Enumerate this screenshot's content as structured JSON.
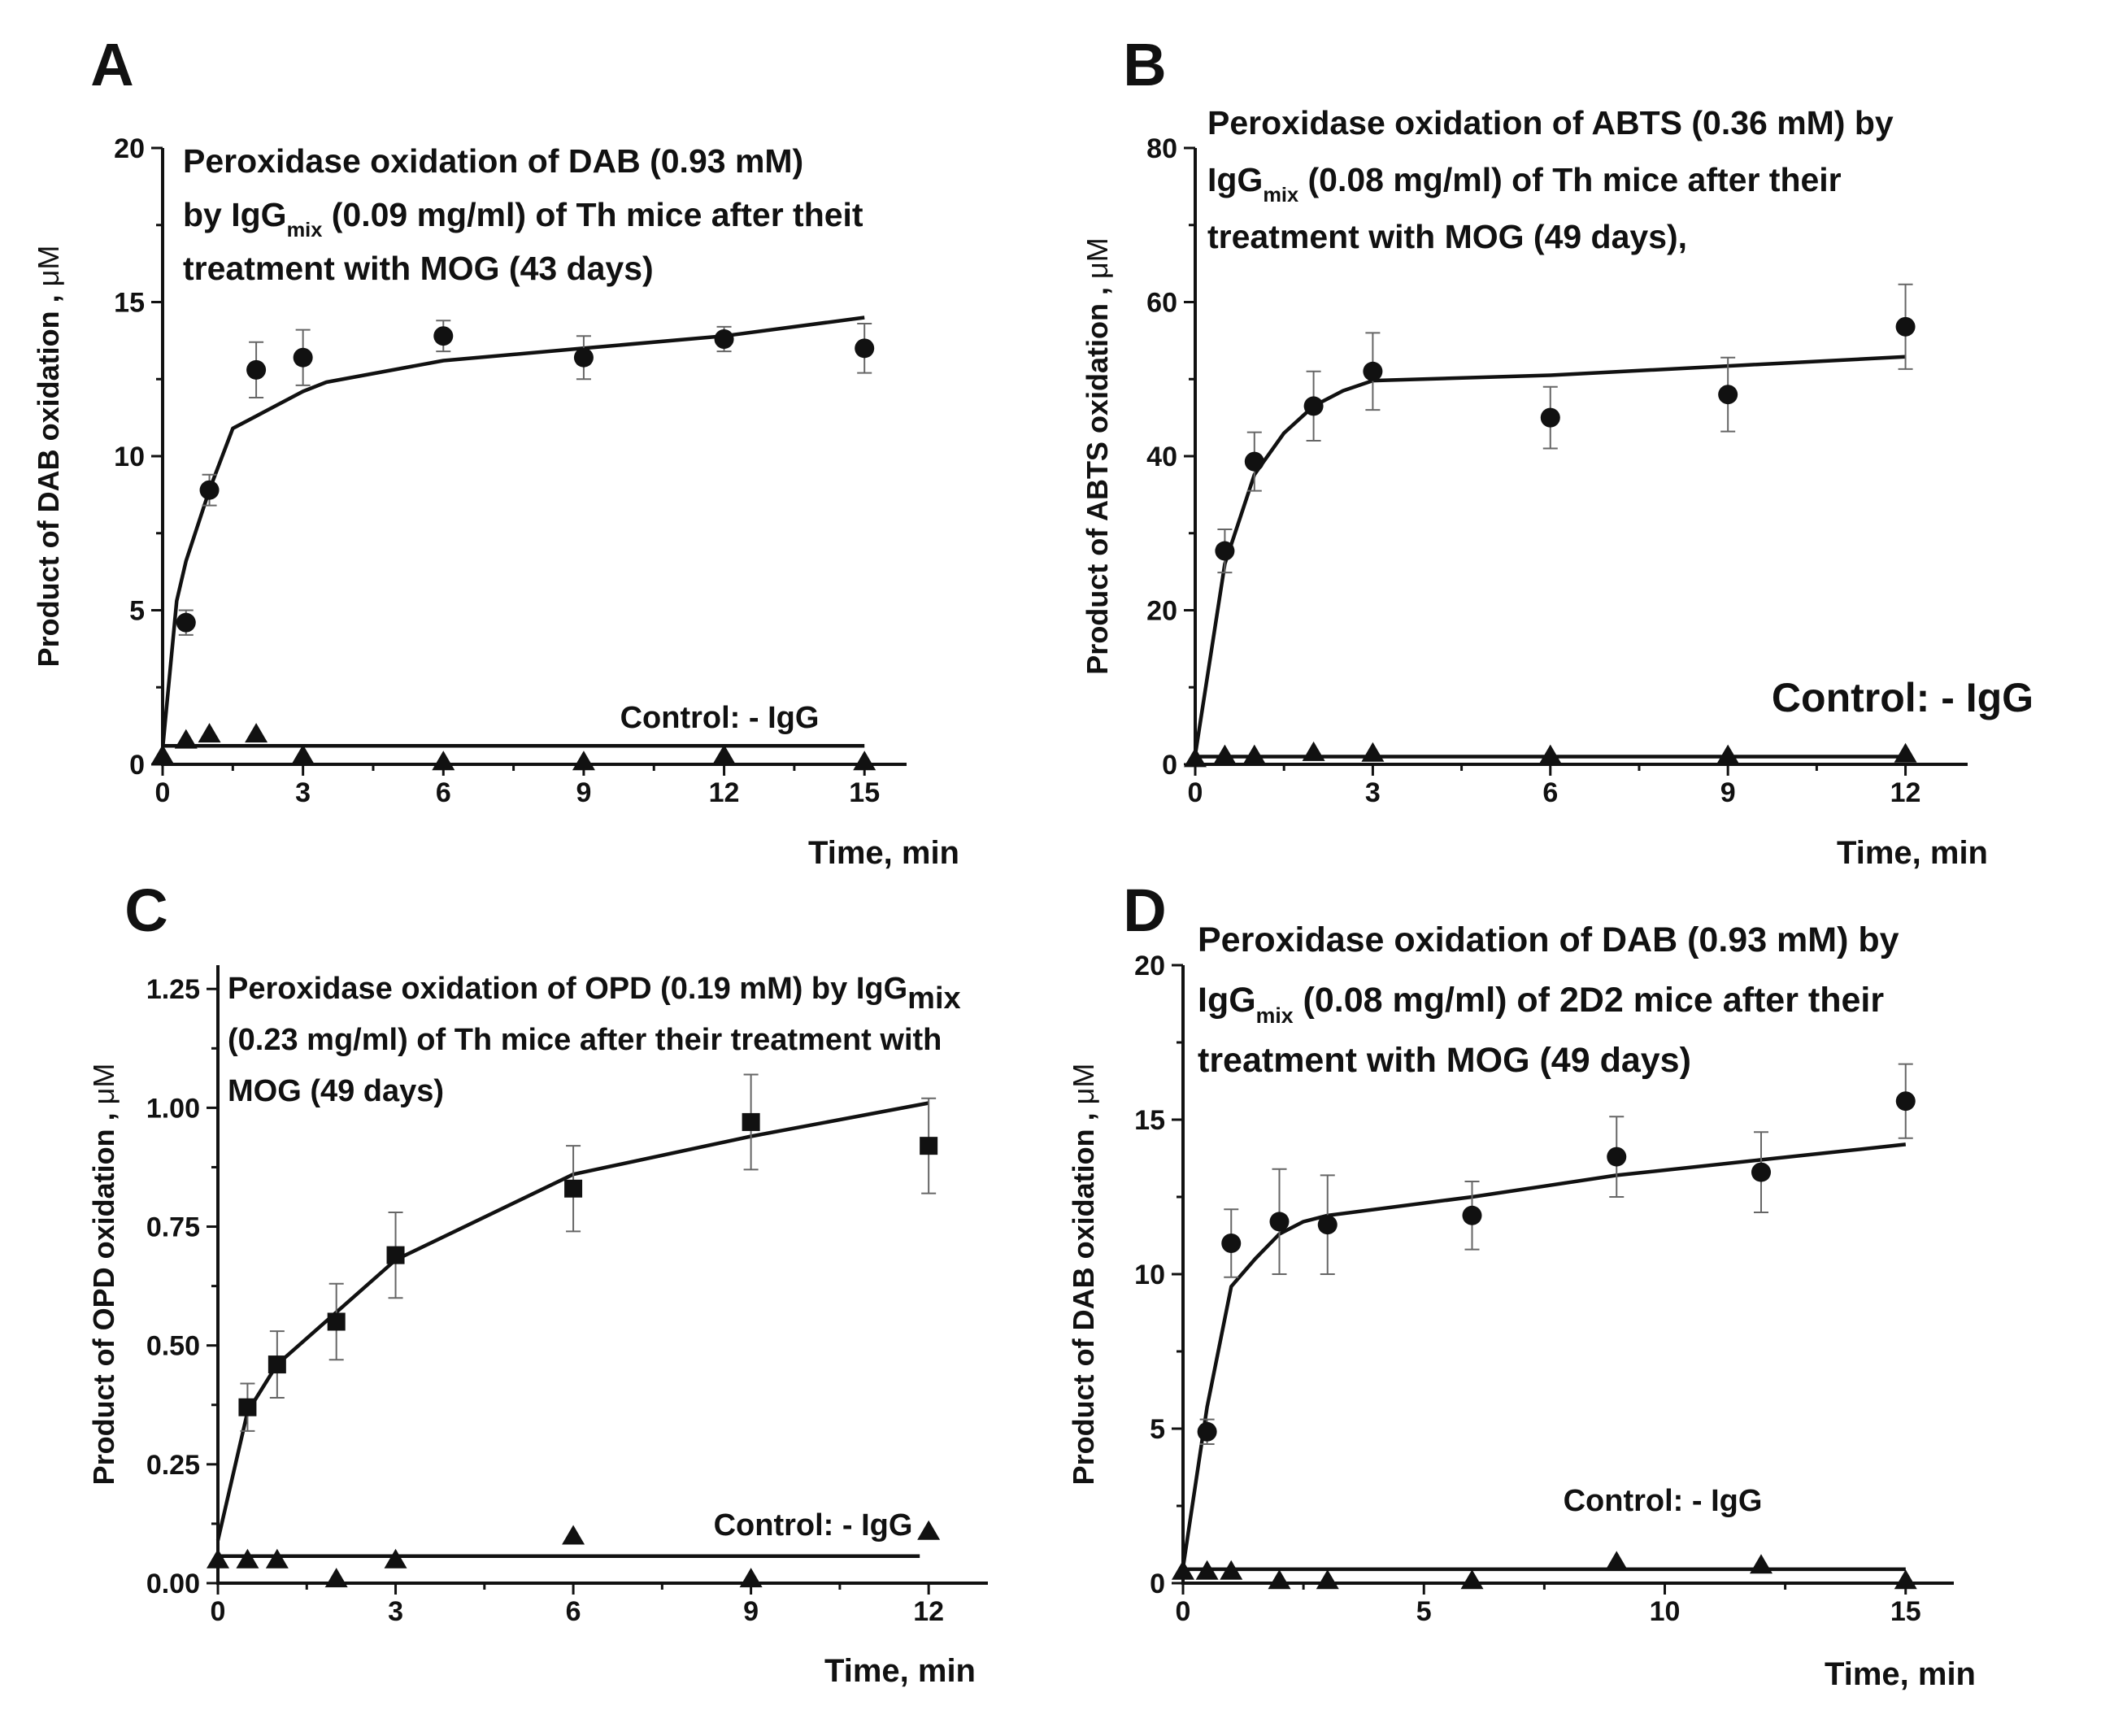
{
  "chart_data": [
    {
      "type": "scatter",
      "panel": "A",
      "title_lines": [
        [
          "Peroxidase oxidation of  DAB (0.93 mM)"
        ],
        [
          "by IgG",
          {
            "sub": "mix"
          },
          " (0.09 mg/ml) of Th mice after theit"
        ],
        [
          " treatment with MOG  (43 days)"
        ]
      ],
      "xlabel": "Time, min",
      "ylabel": "Product of DAB oxidation , ",
      "ylabel_unit": "μM",
      "xlim": [
        0,
        15.9
      ],
      "ylim": [
        0,
        20
      ],
      "xticks": [
        0,
        3,
        6,
        9,
        12,
        15
      ],
      "yticks": [
        0,
        5,
        10,
        15,
        20
      ],
      "ytick_labels": [
        "0",
        "5",
        "10",
        "15",
        "20"
      ],
      "control_label": "Control: - IgG",
      "series": [
        {
          "name": "IgG_mix",
          "marker": "circle",
          "x": [
            0.5,
            1,
            2,
            3,
            6,
            9,
            12,
            15
          ],
          "y": [
            4.6,
            8.9,
            12.8,
            13.2,
            13.9,
            13.2,
            13.8,
            13.5
          ],
          "err": [
            0.4,
            0.5,
            0.9,
            0.9,
            0.5,
            0.7,
            0.4,
            0.8
          ]
        },
        {
          "name": "Control: - IgG",
          "marker": "triangle",
          "x": [
            0,
            0.5,
            1,
            2,
            3,
            6,
            9,
            12,
            15
          ],
          "y": [
            0.3,
            0.8,
            1.0,
            1.0,
            0.3,
            0.1,
            0.1,
            0.3,
            0.1
          ]
        }
      ],
      "fit_curves": [
        {
          "x": [
            0,
            0.3,
            0.5,
            1,
            1.5,
            2,
            3,
            3.5,
            6,
            9,
            12,
            15
          ],
          "y": [
            0.5,
            5.3,
            6.6,
            8.9,
            10.9,
            11.3,
            12.1,
            12.4,
            13.1,
            13.5,
            13.9,
            14.5
          ]
        },
        {
          "x": [
            0,
            15
          ],
          "y": [
            0.6,
            0.6
          ]
        }
      ]
    },
    {
      "type": "scatter",
      "panel": "B",
      "title_lines": [
        [
          "Peroxidase oxidation of  ABTS (0.36 mM) by"
        ],
        [
          "IgG",
          {
            "sub": "mix"
          },
          " (0.08 mg/ml) of Th mice after their"
        ],
        [
          " treatment with MOG  (49 days),"
        ]
      ],
      "xlabel": "Time, min",
      "ylabel": "Product of ABTS oxidation , ",
      "ylabel_unit": "μM",
      "xlim": [
        0,
        13.05
      ],
      "ylim": [
        0,
        80
      ],
      "xticks": [
        0,
        3,
        6,
        9,
        12
      ],
      "yticks": [
        0,
        20,
        40,
        60,
        80
      ],
      "ytick_labels": [
        "0",
        "20",
        "40",
        "60",
        "80"
      ],
      "control_label": "Control: - IgG",
      "series": [
        {
          "name": "IgG_mix",
          "marker": "circle",
          "x": [
            0.5,
            1,
            2,
            3,
            6,
            9,
            12
          ],
          "y": [
            27.7,
            39.3,
            46.5,
            51.0,
            45.0,
            48.0,
            56.8
          ],
          "err": [
            2.8,
            3.8,
            4.5,
            5.0,
            4.0,
            4.8,
            5.5
          ]
        },
        {
          "name": "Control: - IgG",
          "marker": "triangle",
          "x": [
            0,
            0.5,
            1,
            2,
            3,
            6,
            9,
            12
          ],
          "y": [
            0.8,
            1.2,
            1.2,
            1.6,
            1.5,
            1.2,
            1.2,
            1.4
          ]
        }
      ],
      "fit_curves": [
        {
          "x": [
            0,
            0.5,
            1,
            1.5,
            2,
            2.5,
            3,
            6,
            9,
            12
          ],
          "y": [
            1.2,
            26.0,
            37.6,
            43.0,
            46.5,
            48.5,
            49.8,
            50.5,
            51.7,
            52.9
          ]
        },
        {
          "x": [
            0,
            12
          ],
          "y": [
            1.0,
            1.0
          ]
        }
      ]
    },
    {
      "type": "scatter",
      "panel": "C",
      "title_lines": [
        [
          "Peroxidase oxidation of  OPD (0.19 mM) by IgG",
          {
            "sub": "mix"
          }
        ],
        [
          "(0.23 mg/ml) of Th mice after their treatment with"
        ],
        [
          "MOG  (49 days)"
        ]
      ],
      "xlabel": "Time, min",
      "ylabel": "Product of OPD oxidation , ",
      "ylabel_unit": "μM",
      "xlim": [
        0,
        13.0
      ],
      "ylim": [
        0,
        1.3
      ],
      "xticks": [
        0,
        3,
        6,
        9,
        12
      ],
      "yticks": [
        0,
        0.25,
        0.5,
        0.75,
        1.0,
        1.25
      ],
      "ytick_labels": [
        "0.00",
        "0.25",
        "0.50",
        "0.75",
        "1.00",
        "1.25"
      ],
      "control_label": "Control: - IgG",
      "series": [
        {
          "name": "IgG_mix",
          "marker": "square",
          "x": [
            0.5,
            1,
            2,
            3,
            6,
            9,
            12
          ],
          "y": [
            0.37,
            0.46,
            0.55,
            0.69,
            0.83,
            0.97,
            0.92
          ],
          "err": [
            0.05,
            0.07,
            0.08,
            0.09,
            0.09,
            0.1,
            0.1
          ]
        },
        {
          "name": "Control: - IgG",
          "marker": "triangle",
          "x": [
            0,
            0.5,
            1,
            2,
            3,
            6,
            9,
            12
          ],
          "y": [
            0.05,
            0.05,
            0.05,
            0.01,
            0.05,
            0.1,
            0.01,
            0.11
          ]
        }
      ],
      "fit_curves": [
        {
          "x": [
            0,
            0.5,
            1,
            2,
            3,
            6,
            9,
            12
          ],
          "y": [
            0.09,
            0.36,
            0.46,
            0.57,
            0.68,
            0.86,
            0.94,
            1.01
          ]
        },
        {
          "x": [
            0,
            11.85
          ],
          "y": [
            0.057,
            0.057
          ]
        }
      ]
    },
    {
      "type": "scatter",
      "panel": "D",
      "title_lines": [
        [
          "Peroxidase oxidation of  DAB (0.93 mM) by"
        ],
        [
          "IgG",
          {
            "sub": "mix"
          },
          " (0.08 mg/ml) of 2D2 mice after their"
        ],
        [
          "treatment with MOG  (49 days)"
        ]
      ],
      "xlabel": "Time, min",
      "ylabel": "Product of DAB oxidation , ",
      "ylabel_unit": "μM",
      "xlim": [
        0,
        16.0
      ],
      "ylim": [
        0,
        20
      ],
      "xticks": [
        0,
        5,
        10,
        15
      ],
      "yticks": [
        0,
        5,
        10,
        15,
        20
      ],
      "ytick_labels": [
        "0",
        "5",
        "10",
        "15",
        "20"
      ],
      "control_label": "Control: - IgG",
      "series": [
        {
          "name": "IgG_mix",
          "marker": "circle",
          "x": [
            0.5,
            1,
            2,
            3,
            6,
            9,
            12,
            15
          ],
          "y": [
            4.9,
            11.0,
            11.7,
            11.6,
            11.9,
            13.8,
            13.3,
            15.6
          ],
          "err": [
            0.4,
            1.1,
            1.7,
            1.6,
            1.1,
            1.3,
            1.3,
            1.2
          ]
        },
        {
          "name": "Control: - IgG",
          "marker": "triangle",
          "x": [
            0,
            0.5,
            1,
            2,
            3,
            6,
            9,
            12,
            15
          ],
          "y": [
            0.4,
            0.4,
            0.4,
            0.1,
            0.1,
            0.1,
            0.7,
            0.6,
            0.1
          ]
        }
      ],
      "fit_curves": [
        {
          "x": [
            0,
            0.5,
            1,
            1.5,
            2,
            2.5,
            3,
            6,
            9,
            12,
            15
          ],
          "y": [
            0.5,
            5.7,
            9.6,
            10.5,
            11.3,
            11.7,
            11.9,
            12.5,
            13.2,
            13.7,
            14.2
          ]
        },
        {
          "x": [
            0,
            15
          ],
          "y": [
            0.45,
            0.45
          ]
        }
      ]
    }
  ]
}
